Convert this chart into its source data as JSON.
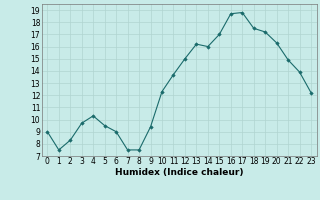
{
  "x": [
    0,
    1,
    2,
    3,
    4,
    5,
    6,
    7,
    8,
    9,
    10,
    11,
    12,
    13,
    14,
    15,
    16,
    17,
    18,
    19,
    20,
    21,
    22,
    23
  ],
  "y": [
    9.0,
    7.5,
    8.3,
    9.7,
    10.3,
    9.5,
    9.0,
    7.5,
    7.5,
    9.4,
    12.3,
    13.7,
    15.0,
    16.2,
    16.0,
    17.0,
    18.7,
    18.8,
    17.5,
    17.2,
    16.3,
    14.9,
    13.9,
    12.2
  ],
  "xlabel": "Humidex (Indice chaleur)",
  "xlim": [
    -0.5,
    23.5
  ],
  "ylim": [
    7,
    19.5
  ],
  "yticks": [
    7,
    8,
    9,
    10,
    11,
    12,
    13,
    14,
    15,
    16,
    17,
    18,
    19
  ],
  "xticks": [
    0,
    1,
    2,
    3,
    4,
    5,
    6,
    7,
    8,
    9,
    10,
    11,
    12,
    13,
    14,
    15,
    16,
    17,
    18,
    19,
    20,
    21,
    22,
    23
  ],
  "line_color": "#1a6b6b",
  "marker_color": "#1a6b6b",
  "bg_color": "#c8ebe8",
  "grid_color": "#b0d5d0",
  "axes_bg": "#c8ebe8",
  "tick_label_fontsize": 5.5,
  "xlabel_fontsize": 6.5
}
